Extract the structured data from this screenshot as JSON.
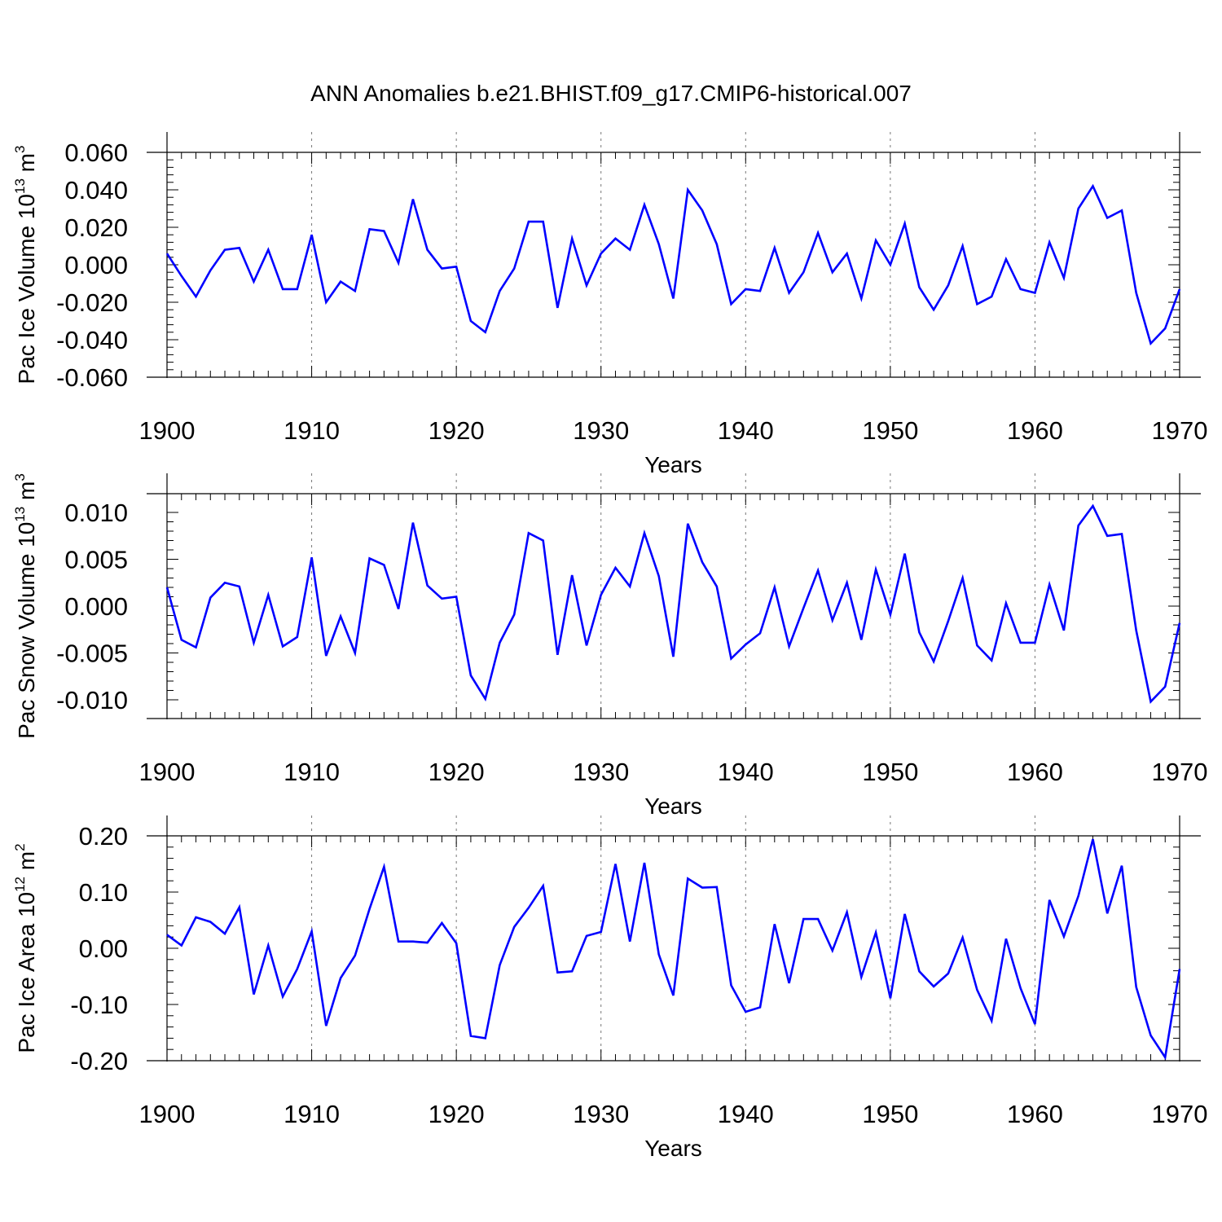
{
  "chart_data": {
    "type": "line",
    "title": "ANN Anomalies b.e21.BHIST.f09_g17.CMIP6-historical.007",
    "line_color": "#0000ff",
    "x": [
      1900,
      1901,
      1902,
      1903,
      1904,
      1905,
      1906,
      1907,
      1908,
      1909,
      1910,
      1911,
      1912,
      1913,
      1914,
      1915,
      1916,
      1917,
      1918,
      1919,
      1920,
      1921,
      1922,
      1923,
      1924,
      1925,
      1926,
      1927,
      1928,
      1929,
      1930,
      1931,
      1932,
      1933,
      1934,
      1935,
      1936,
      1937,
      1938,
      1939,
      1940,
      1941,
      1942,
      1943,
      1944,
      1945,
      1946,
      1947,
      1948,
      1949,
      1950,
      1951,
      1952,
      1953,
      1954,
      1955,
      1956,
      1957,
      1958,
      1959,
      1960,
      1961,
      1962,
      1963,
      1964,
      1965,
      1966,
      1967,
      1968,
      1969,
      1970
    ],
    "xlim": [
      1900,
      1970
    ],
    "xticks": [
      1900,
      1910,
      1920,
      1930,
      1940,
      1950,
      1960,
      1970
    ],
    "xlabel": "Years",
    "grid": "dashed vertical lines at major x ticks",
    "panels": [
      {
        "name": "ice-volume",
        "ylabel": {
          "text": "Pac Ice Volume 10",
          "exp": "13",
          "unit": " m",
          "unit_exp": "3"
        },
        "ylim": [
          -0.06,
          0.06
        ],
        "yticks": [
          0.06,
          0.04,
          0.02,
          0.0,
          -0.02,
          -0.04,
          -0.06
        ],
        "yticklabels": [
          "0.060",
          "0.040",
          "0.020",
          "0.000",
          "-0.020",
          "-0.040",
          "-0.060"
        ],
        "series": [
          {
            "name": "Pac Ice Volume",
            "values": [
              0.006,
              -0.006,
              -0.017,
              -0.003,
              0.008,
              0.009,
              -0.009,
              0.008,
              -0.013,
              -0.013,
              0.016,
              -0.02,
              -0.009,
              -0.014,
              0.019,
              0.018,
              0.001,
              0.035,
              0.008,
              -0.002,
              -0.001,
              -0.03,
              -0.036,
              -0.014,
              -0.002,
              0.023,
              0.023,
              -0.023,
              0.014,
              -0.011,
              0.006,
              0.014,
              0.008,
              0.032,
              0.011,
              -0.018,
              0.04,
              0.029,
              0.011,
              -0.021,
              -0.013,
              -0.014,
              0.009,
              -0.015,
              -0.004,
              0.017,
              -0.004,
              0.006,
              -0.018,
              0.013,
              0.0,
              0.022,
              -0.012,
              -0.024,
              -0.011,
              0.01,
              -0.021,
              -0.017,
              0.003,
              -0.013,
              -0.015,
              0.012,
              -0.007,
              0.03,
              0.042,
              0.025,
              0.029,
              -0.015,
              -0.042,
              -0.034,
              -0.013
            ]
          }
        ]
      },
      {
        "name": "snow-volume",
        "ylabel": {
          "text": "Pac Snow Volume 10",
          "exp": "13",
          "unit": " m",
          "unit_exp": "3"
        },
        "ylim": [
          -0.012,
          0.012
        ],
        "yticks": [
          0.01,
          0.005,
          0.0,
          -0.005,
          -0.01
        ],
        "yticklabels": [
          "0.010",
          "0.005",
          "0.000",
          "-0.005",
          "-0.010"
        ],
        "series": [
          {
            "name": "Pac Snow Volume",
            "values": [
              0.002,
              -0.0036,
              -0.0044,
              0.0009,
              0.0025,
              0.0021,
              -0.0039,
              0.0012,
              -0.0043,
              -0.0033,
              0.0052,
              -0.0053,
              -0.0011,
              -0.005,
              0.0051,
              0.0044,
              -0.0003,
              0.0089,
              0.0022,
              0.0008,
              0.001,
              -0.0074,
              -0.0099,
              -0.0039,
              -0.0009,
              0.0078,
              0.007,
              -0.0052,
              0.0033,
              -0.0042,
              0.0012,
              0.0041,
              0.0021,
              0.0078,
              0.0032,
              -0.0054,
              0.0088,
              0.0047,
              0.0021,
              -0.0056,
              -0.0041,
              -0.0029,
              0.002,
              -0.0043,
              -0.0002,
              0.0038,
              -0.0015,
              0.0025,
              -0.0036,
              0.0039,
              -0.0009,
              0.0056,
              -0.0028,
              -0.0059,
              -0.0016,
              0.003,
              -0.0042,
              -0.0058,
              0.0003,
              -0.0039,
              -0.0039,
              0.0023,
              -0.0026,
              0.0086,
              0.0107,
              0.0075,
              0.0077,
              -0.0026,
              -0.0102,
              -0.0086,
              -0.0018
            ]
          }
        ]
      },
      {
        "name": "ice-area",
        "ylabel": {
          "text": "Pac Ice Area 10",
          "exp": "12",
          "unit": " m",
          "unit_exp": "2"
        },
        "ylim": [
          -0.2,
          0.2
        ],
        "yticks": [
          0.2,
          0.1,
          0.0,
          -0.1,
          -0.2
        ],
        "yticklabels": [
          "0.20",
          "0.10",
          "0.00",
          "-0.10",
          "-0.20"
        ],
        "series": [
          {
            "name": "Pac Ice Area",
            "values": [
              0.024,
              0.005,
              0.055,
              0.047,
              0.026,
              0.073,
              -0.082,
              0.005,
              -0.086,
              -0.037,
              0.03,
              -0.138,
              -0.053,
              -0.013,
              0.07,
              0.145,
              0.012,
              0.012,
              0.01,
              0.045,
              0.009,
              -0.156,
              -0.16,
              -0.03,
              0.038,
              0.072,
              0.111,
              -0.043,
              -0.041,
              0.022,
              0.029,
              0.15,
              0.012,
              0.152,
              -0.011,
              -0.084,
              0.124,
              0.108,
              0.109,
              -0.066,
              -0.113,
              -0.105,
              0.043,
              -0.062,
              0.052,
              0.052,
              -0.004,
              0.064,
              -0.051,
              0.028,
              -0.089,
              0.061,
              -0.041,
              -0.068,
              -0.045,
              0.019,
              -0.074,
              -0.129,
              0.017,
              -0.071,
              -0.135,
              0.086,
              0.021,
              0.093,
              0.194,
              0.062,
              0.147,
              -0.069,
              -0.155,
              -0.194,
              -0.037
            ]
          }
        ]
      }
    ]
  }
}
